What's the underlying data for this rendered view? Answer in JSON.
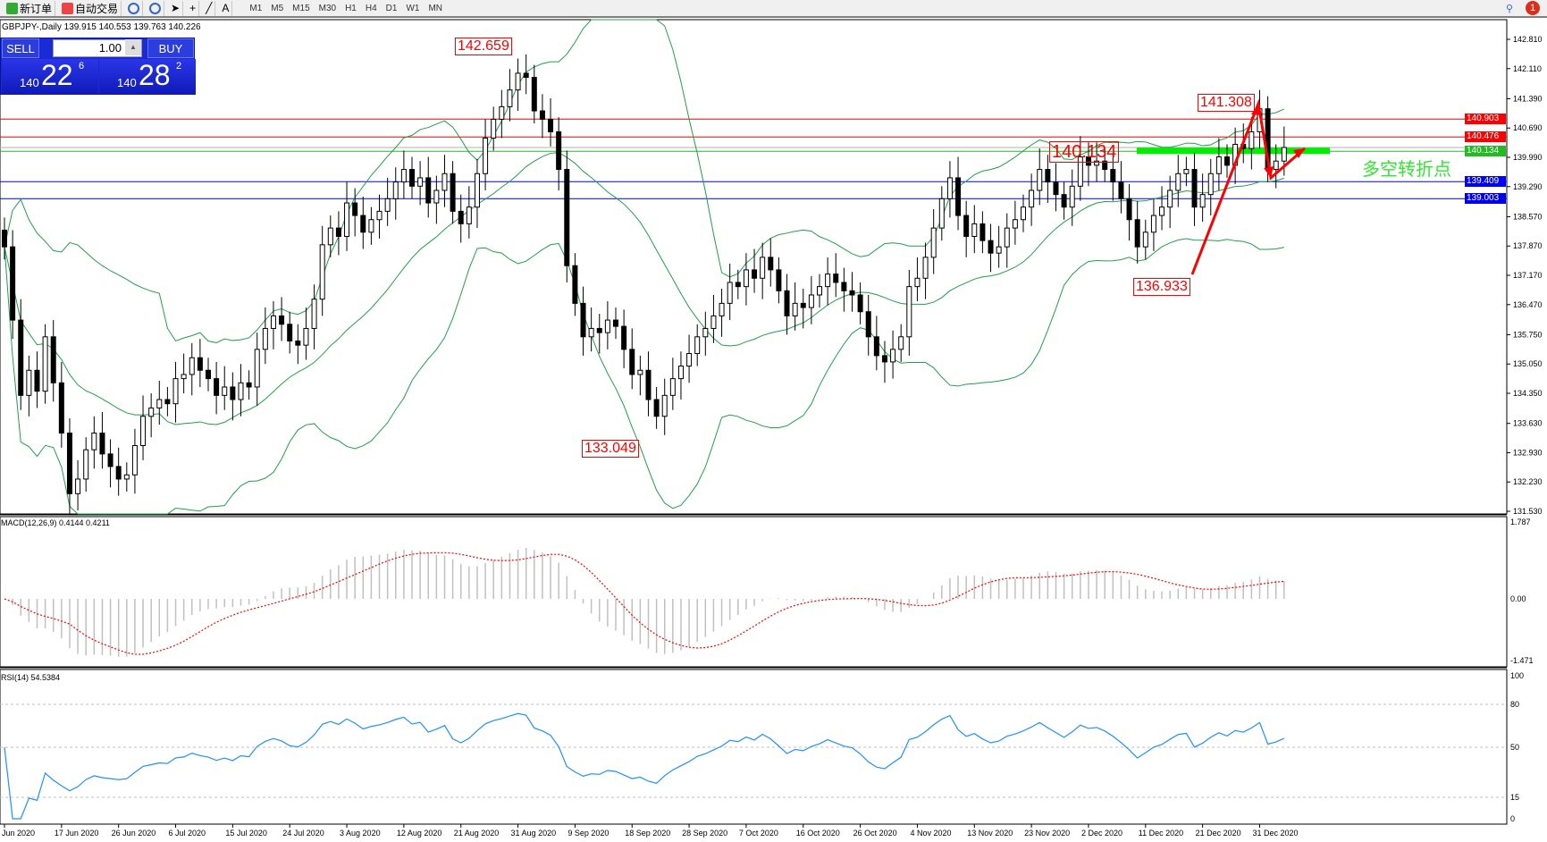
{
  "toolbar": {
    "new_order": "新订单",
    "auto_trading": "自动交易",
    "timeframes": [
      "M1",
      "M5",
      "M15",
      "M30",
      "H1",
      "H4",
      "D1",
      "W1",
      "MN"
    ],
    "notifications": "1"
  },
  "chart_header": "GBPJPY-,Daily  139.915 140.553 139.763 140.226",
  "trade_panel": {
    "sell": "SELL",
    "buy": "BUY",
    "lot": "1.00",
    "sell_price": {
      "big": "140",
      "main": "22",
      "pip": "6"
    },
    "buy_price": {
      "big": "140",
      "main": "28",
      "pip": "2"
    }
  },
  "annotations": {
    "high": "142.659",
    "low_sep": "133.049",
    "level": "140.134",
    "recent_high": "141.308",
    "recent_low": "136.933",
    "pivot_text": "多空转折点"
  },
  "colors": {
    "bull": "#ffffff",
    "bear": "#000000",
    "bands": "#1fa04a",
    "rsi": "#1e90ff",
    "signal": "#ff0000",
    "hist": "#c0c0c0",
    "green_zone": "#00ee00"
  },
  "chart_data": {
    "type": "candlestick",
    "symbol": "GBPJPY-",
    "timeframe": "Daily",
    "ylim": [
      131.53,
      142.81
    ],
    "price_ticks": [
      "142.810",
      "142.110",
      "141.390",
      "140.690",
      "139.990",
      "139.290",
      "138.570",
      "137.870",
      "137.170",
      "136.470",
      "135.750",
      "135.050",
      "134.350",
      "133.630",
      "132.930",
      "132.230",
      "131.530"
    ],
    "hlines": [
      {
        "value": 140.903,
        "label": "140.903",
        "color": "#ff0000"
      },
      {
        "value": 140.476,
        "label": "140.476",
        "color": "#ff0000"
      },
      {
        "value": 140.134,
        "label": "140.134",
        "color": "#22bb22"
      },
      {
        "value": 139.409,
        "label": "139.409",
        "color": "#0000ff"
      },
      {
        "value": 139.003,
        "label": "139.003",
        "color": "#0000ee"
      }
    ],
    "bid": 140.226,
    "closes": [
      137.85,
      136.1,
      134.3,
      134.9,
      134.4,
      135.7,
      134.6,
      133.4,
      131.95,
      132.3,
      133.0,
      133.4,
      132.9,
      132.6,
      132.3,
      132.4,
      133.1,
      133.8,
      134.0,
      134.2,
      134.1,
      134.7,
      134.8,
      135.2,
      134.9,
      134.7,
      134.3,
      134.5,
      134.2,
      134.6,
      134.5,
      135.4,
      135.9,
      136.2,
      136.0,
      135.6,
      135.5,
      135.9,
      136.6,
      137.9,
      138.3,
      138.1,
      138.9,
      138.6,
      138.2,
      138.5,
      138.7,
      139.0,
      139.4,
      139.7,
      139.3,
      139.5,
      138.9,
      139.2,
      139.6,
      138.7,
      138.4,
      138.8,
      139.6,
      140.45,
      140.9,
      141.2,
      141.6,
      142.0,
      141.9,
      141.1,
      140.9,
      140.6,
      139.7,
      137.4,
      136.5,
      135.7,
      135.9,
      135.8,
      136.1,
      135.95,
      135.4,
      134.8,
      134.9,
      134.2,
      133.8,
      134.3,
      134.7,
      135.0,
      135.3,
      135.7,
      135.9,
      136.2,
      136.5,
      137.0,
      136.9,
      137.3,
      137.1,
      137.6,
      137.3,
      136.8,
      136.2,
      136.5,
      136.4,
      136.7,
      136.9,
      137.2,
      137.0,
      136.8,
      136.7,
      136.3,
      135.7,
      135.25,
      135.1,
      135.4,
      135.7,
      136.9,
      137.1,
      137.6,
      138.3,
      139.0,
      139.5,
      138.6,
      138.1,
      138.4,
      138.0,
      137.7,
      137.85,
      138.3,
      138.5,
      138.8,
      139.2,
      139.7,
      139.4,
      139.1,
      138.8,
      139.3,
      140.0,
      139.8,
      139.9,
      139.7,
      139.4,
      139.0,
      138.5,
      137.85,
      138.2,
      138.6,
      138.8,
      139.2,
      139.6,
      139.7,
      138.8,
      139.1,
      139.6,
      140.0,
      139.8,
      140.3,
      140.2,
      140.6,
      141.15,
      139.7,
      139.9,
      140.226
    ],
    "date_labels": [
      "Jun 2020",
      "17 Jun 2020",
      "26 Jun 2020",
      "6 Jul 2020",
      "15 Jul 2020",
      "24 Jul 2020",
      "3 Aug 2020",
      "12 Aug 2020",
      "21 Aug 2020",
      "31 Aug 2020",
      "9 Sep 2020",
      "18 Sep 2020",
      "28 Sep 2020",
      "7 Oct 2020",
      "16 Oct 2020",
      "26 Oct 2020",
      "4 Nov 2020",
      "13 Nov 2020",
      "23 Nov 2020",
      "2 Dec 2020",
      "11 Dec 2020",
      "21 Dec 2020",
      "31 Dec 2020"
    ],
    "macd": {
      "label": "MACD(12,26,9) 0.4144 0.4211",
      "ticks": [
        "1.787",
        "0.00",
        "-1.471"
      ],
      "range": [
        -1.471,
        1.787
      ]
    },
    "rsi": {
      "label": "RSI(14) 54.5384",
      "ticks": [
        "100",
        "80",
        "50",
        "15",
        "0"
      ],
      "levels": [
        80,
        50,
        15
      ]
    }
  }
}
